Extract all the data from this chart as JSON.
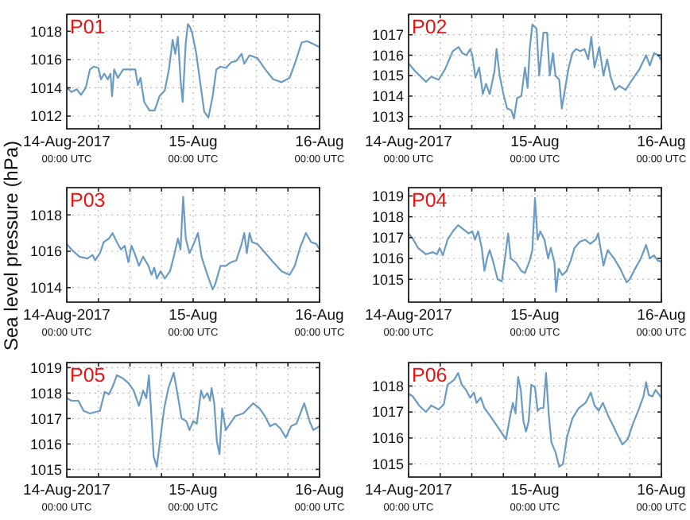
{
  "chart_data": [
    {
      "type": "line",
      "title": "P01",
      "ylabel": "Sea level pressure (hPa)",
      "xlim": [
        "2017-08-14T00:00",
        "2017-08-16T00:00"
      ],
      "ylim": [
        1011.1,
        1019.2
      ],
      "yticks": [
        1012,
        1014,
        1016,
        1018
      ],
      "xticks": [
        {
          "value": "2017-08-14T00:00",
          "label": "14-Aug-2017\n00:00 UTC"
        },
        {
          "value": "2017-08-14T06:00",
          "label": null
        },
        {
          "value": "2017-08-14T12:00",
          "label": null
        },
        {
          "value": "2017-08-14T18:00",
          "label": null
        },
        {
          "value": "2017-08-15T00:00",
          "label": "15-Aug\n00:00 UTC"
        },
        {
          "value": "2017-08-15T06:00",
          "label": null
        },
        {
          "value": "2017-08-15T12:00",
          "label": null
        },
        {
          "value": "2017-08-15T18:00",
          "label": null
        },
        {
          "value": "2017-08-16T00:00",
          "label": "16-Aug\n00:00 UTC"
        }
      ],
      "grid": true,
      "marker": "none",
      "line_style": "solid",
      "x": [
        "2017-08-14T00:00",
        "2017-08-14T00:54",
        "2017-08-14T01:54",
        "2017-08-14T02:42",
        "2017-08-14T03:36",
        "2017-08-14T04:24",
        "2017-08-14T05:06",
        "2017-08-14T06:00",
        "2017-08-14T06:30",
        "2017-08-14T07:06",
        "2017-08-14T07:48",
        "2017-08-14T08:18",
        "2017-08-14T08:36",
        "2017-08-14T09:00",
        "2017-08-14T09:42",
        "2017-08-14T10:42",
        "2017-08-14T13:00",
        "2017-08-14T13:30",
        "2017-08-14T14:00",
        "2017-08-14T14:42",
        "2017-08-14T15:42",
        "2017-08-14T16:42",
        "2017-08-14T17:36",
        "2017-08-14T18:36",
        "2017-08-14T19:24",
        "2017-08-14T20:06",
        "2017-08-14T20:36",
        "2017-08-14T21:06",
        "2017-08-14T21:36",
        "2017-08-14T22:00",
        "2017-08-14T22:36",
        "2017-08-14T23:00",
        "2017-08-14T23:24",
        "2017-08-14T23:48",
        "2017-08-15T00:36",
        "2017-08-15T01:24",
        "2017-08-15T02:06",
        "2017-08-15T02:54",
        "2017-08-15T03:42",
        "2017-08-15T04:24",
        "2017-08-15T05:12",
        "2017-08-15T06:12",
        "2017-08-15T07:12",
        "2017-08-15T08:12",
        "2017-08-15T09:12",
        "2017-08-15T09:42",
        "2017-08-15T10:42",
        "2017-08-15T12:12",
        "2017-08-15T13:42",
        "2017-08-15T15:12",
        "2017-08-15T16:48",
        "2017-08-15T18:18",
        "2017-08-15T19:18",
        "2017-08-15T20:36",
        "2017-08-15T21:36",
        "2017-08-15T22:48",
        "2017-08-15T23:54"
      ],
      "series": [
        {
          "color": "#6a9bc4",
          "values": [
            1014.0,
            1013.7,
            1013.9,
            1013.5,
            1014.0,
            1015.3,
            1015.5,
            1015.4,
            1014.6,
            1015.0,
            1014.6,
            1015.0,
            1013.4,
            1015.3,
            1014.7,
            1015.3,
            1015.3,
            1014.2,
            1014.7,
            1013.0,
            1012.4,
            1012.4,
            1013.4,
            1013.8,
            1015.3,
            1017.4,
            1016.4,
            1017.6,
            1014.6,
            1013.0,
            1017.2,
            1018.5,
            1018.3,
            1017.9,
            1016.4,
            1014.2,
            1012.3,
            1011.9,
            1013.4,
            1015.3,
            1015.5,
            1015.4,
            1015.8,
            1015.9,
            1016.4,
            1015.7,
            1016.3,
            1016.1,
            1015.3,
            1014.6,
            1014.4,
            1014.7,
            1015.7,
            1017.2,
            1017.3,
            1017.1,
            1016.9
          ]
        }
      ]
    },
    {
      "type": "line",
      "title": "P02",
      "xlim": [
        "2017-08-14T00:00",
        "2017-08-16T00:00"
      ],
      "ylim": [
        1012.4,
        1018
      ],
      "yticks": [
        1013,
        1014,
        1015,
        1016,
        1017
      ],
      "xticks": [
        {
          "value": "2017-08-14T00:00",
          "label": "14-Aug-2017\n00:00 UTC"
        },
        {
          "value": "2017-08-14T06:00",
          "label": null
        },
        {
          "value": "2017-08-14T12:00",
          "label": null
        },
        {
          "value": "2017-08-14T18:00",
          "label": null
        },
        {
          "value": "2017-08-15T00:00",
          "label": "15-Aug\n00:00 UTC"
        },
        {
          "value": "2017-08-15T06:00",
          "label": null
        },
        {
          "value": "2017-08-15T12:00",
          "label": null
        },
        {
          "value": "2017-08-15T18:00",
          "label": null
        },
        {
          "value": "2017-08-16T00:00",
          "label": "16-Aug\n00:00 UTC"
        }
      ],
      "grid": true,
      "marker": "none",
      "line_style": "solid",
      "x": [
        "2017-08-14T00:00",
        "2017-08-14T01:18",
        "2017-08-14T03:18",
        "2017-08-14T04:18",
        "2017-08-14T05:42",
        "2017-08-14T06:54",
        "2017-08-14T08:24",
        "2017-08-14T09:30",
        "2017-08-14T10:12",
        "2017-08-14T11:00",
        "2017-08-14T11:42",
        "2017-08-14T12:06",
        "2017-08-14T12:42",
        "2017-08-14T13:24",
        "2017-08-14T14:06",
        "2017-08-14T14:42",
        "2017-08-14T15:24",
        "2017-08-14T16:18",
        "2017-08-14T16:42",
        "2017-08-14T17:18",
        "2017-08-14T18:00",
        "2017-08-14T18:42",
        "2017-08-14T19:30",
        "2017-08-14T20:00",
        "2017-08-14T20:36",
        "2017-08-14T21:24",
        "2017-08-14T22:06",
        "2017-08-14T22:36",
        "2017-08-14T23:00",
        "2017-08-14T23:30",
        "2017-08-15T00:18",
        "2017-08-15T00:48",
        "2017-08-15T01:36",
        "2017-08-15T02:18",
        "2017-08-15T02:48",
        "2017-08-15T03:24",
        "2017-08-15T03:54",
        "2017-08-15T04:36",
        "2017-08-15T05:06",
        "2017-08-15T05:48",
        "2017-08-15T06:24",
        "2017-08-15T07:06",
        "2017-08-15T07:48",
        "2017-08-15T08:36",
        "2017-08-15T09:24",
        "2017-08-15T10:06",
        "2017-08-15T10:42",
        "2017-08-15T11:18",
        "2017-08-15T12:12",
        "2017-08-15T13:00",
        "2017-08-15T13:42",
        "2017-08-15T14:24",
        "2017-08-15T15:12",
        "2017-08-15T16:00",
        "2017-08-15T17:12",
        "2017-08-15T18:12",
        "2017-08-15T19:48",
        "2017-08-15T21:06",
        "2017-08-15T21:48",
        "2017-08-15T22:36",
        "2017-08-15T23:24",
        "2017-08-16T00:00"
      ],
      "series": [
        {
          "color": "#6a9bc4",
          "values": [
            1015.6,
            1015.2,
            1014.7,
            1014.95,
            1014.8,
            1015.3,
            1016.2,
            1016.4,
            1016.1,
            1016.0,
            1016.3,
            1016.0,
            1014.9,
            1015.4,
            1014.1,
            1014.6,
            1014.1,
            1015.2,
            1016.3,
            1015.0,
            1014.1,
            1013.4,
            1013.3,
            1012.9,
            1013.9,
            1014.0,
            1015.4,
            1014.4,
            1016.3,
            1017.5,
            1017.3,
            1015.0,
            1017.1,
            1017.1,
            1015.0,
            1016.1,
            1015.0,
            1014.8,
            1013.4,
            1014.5,
            1015.4,
            1016.1,
            1016.3,
            1016.2,
            1016.3,
            1015.8,
            1016.9,
            1015.4,
            1016.4,
            1015.0,
            1015.8,
            1014.9,
            1014.3,
            1014.5,
            1014.3,
            1014.7,
            1015.3,
            1016.0,
            1015.5,
            1016.1,
            1016.0,
            1015.75
          ]
        }
      ]
    },
    {
      "type": "line",
      "title": "P03",
      "xlim": [
        "2017-08-14T00:00",
        "2017-08-16T00:00"
      ],
      "ylim": [
        1013.2,
        1019.5
      ],
      "yticks": [
        1014,
        1016,
        1018
      ],
      "xticks": [
        {
          "value": "2017-08-14T00:00",
          "label": "14-Aug-2017\n00:00 UTC"
        },
        {
          "value": "2017-08-14T06:00",
          "label": null
        },
        {
          "value": "2017-08-14T12:00",
          "label": null
        },
        {
          "value": "2017-08-14T18:00",
          "label": null
        },
        {
          "value": "2017-08-15T00:00",
          "label": "15-Aug\n00:00 UTC"
        },
        {
          "value": "2017-08-15T06:00",
          "label": null
        },
        {
          "value": "2017-08-15T12:00",
          "label": null
        },
        {
          "value": "2017-08-15T18:00",
          "label": null
        },
        {
          "value": "2017-08-16T00:00",
          "label": "16-Aug\n00:00 UTC"
        }
      ],
      "grid": true,
      "marker": "none",
      "line_style": "solid",
      "x": [
        "2017-08-14T00:00",
        "2017-08-14T00:54",
        "2017-08-14T02:24",
        "2017-08-14T03:54",
        "2017-08-14T04:54",
        "2017-08-14T05:24",
        "2017-08-14T06:18",
        "2017-08-14T07:00",
        "2017-08-14T08:00",
        "2017-08-14T08:42",
        "2017-08-14T09:30",
        "2017-08-14T10:18",
        "2017-08-14T11:00",
        "2017-08-14T11:42",
        "2017-08-14T12:18",
        "2017-08-14T13:00",
        "2017-08-14T13:42",
        "2017-08-14T14:30",
        "2017-08-14T15:30",
        "2017-08-14T16:06",
        "2017-08-14T16:36",
        "2017-08-14T17:06",
        "2017-08-14T17:48",
        "2017-08-14T18:36",
        "2017-08-14T19:36",
        "2017-08-14T20:24",
        "2017-08-14T21:06",
        "2017-08-14T21:36",
        "2017-08-14T22:06",
        "2017-08-14T22:36",
        "2017-08-14T23:18",
        "2017-08-15T00:06",
        "2017-08-15T00:54",
        "2017-08-15T01:36",
        "2017-08-15T02:42",
        "2017-08-15T03:42",
        "2017-08-15T04:12",
        "2017-08-15T05:12",
        "2017-08-15T06:12",
        "2017-08-15T07:12",
        "2017-08-15T08:12",
        "2017-08-15T09:12",
        "2017-08-15T09:42",
        "2017-08-15T10:12",
        "2017-08-15T10:42",
        "2017-08-15T11:12",
        "2017-08-15T12:12",
        "2017-08-15T13:42",
        "2017-08-15T15:12",
        "2017-08-15T16:48",
        "2017-08-15T18:18",
        "2017-08-15T19:18",
        "2017-08-15T20:18",
        "2017-08-15T21:24",
        "2017-08-15T22:24",
        "2017-08-15T23:24",
        "2017-08-16T00:00"
      ],
      "series": [
        {
          "color": "#6a9bc4",
          "values": [
            1016.4,
            1016.1,
            1015.7,
            1015.6,
            1015.8,
            1015.5,
            1015.9,
            1016.5,
            1016.7,
            1017.0,
            1016.5,
            1016.1,
            1016.3,
            1015.4,
            1016.3,
            1015.8,
            1015.2,
            1015.7,
            1015.2,
            1014.7,
            1015.1,
            1014.5,
            1014.9,
            1014.5,
            1014.9,
            1015.8,
            1016.7,
            1016.1,
            1019.0,
            1016.7,
            1015.9,
            1016.4,
            1017.0,
            1015.7,
            1014.7,
            1013.9,
            1014.2,
            1015.2,
            1015.2,
            1015.4,
            1015.5,
            1016.4,
            1017.0,
            1015.9,
            1017.0,
            1016.5,
            1016.4,
            1015.9,
            1015.4,
            1014.9,
            1014.7,
            1015.2,
            1016.2,
            1017.0,
            1016.5,
            1016.4,
            1016.1
          ]
        }
      ]
    },
    {
      "type": "line",
      "title": "P04",
      "xlim": [
        "2017-08-14T00:00",
        "2017-08-16T00:00"
      ],
      "ylim": [
        1013.9,
        1019.4
      ],
      "yticks": [
        1015,
        1016,
        1017,
        1018,
        1019
      ],
      "xticks": [
        {
          "value": "2017-08-14T00:00",
          "label": "14-Aug-2017\n00:00 UTC"
        },
        {
          "value": "2017-08-14T06:00",
          "label": null
        },
        {
          "value": "2017-08-14T12:00",
          "label": null
        },
        {
          "value": "2017-08-14T18:00",
          "label": null
        },
        {
          "value": "2017-08-15T00:00",
          "label": "15-Aug\n00:00 UTC"
        },
        {
          "value": "2017-08-15T06:00",
          "label": null
        },
        {
          "value": "2017-08-15T12:00",
          "label": null
        },
        {
          "value": "2017-08-15T18:00",
          "label": null
        },
        {
          "value": "2017-08-16T00:00",
          "label": "16-Aug\n00:00 UTC"
        }
      ],
      "grid": true,
      "marker": "none",
      "line_style": "solid",
      "x": [
        "2017-08-14T00:00",
        "2017-08-14T00:48",
        "2017-08-14T01:48",
        "2017-08-14T03:18",
        "2017-08-14T04:36",
        "2017-08-14T05:24",
        "2017-08-14T05:54",
        "2017-08-14T06:30",
        "2017-08-14T07:24",
        "2017-08-14T08:24",
        "2017-08-14T09:24",
        "2017-08-14T10:24",
        "2017-08-14T11:24",
        "2017-08-14T12:06",
        "2017-08-14T12:36",
        "2017-08-14T13:12",
        "2017-08-14T13:54",
        "2017-08-14T14:24",
        "2017-08-14T14:54",
        "2017-08-14T15:24",
        "2017-08-14T16:06",
        "2017-08-14T16:54",
        "2017-08-14T17:42",
        "2017-08-14T18:24",
        "2017-08-14T18:54",
        "2017-08-14T19:24",
        "2017-08-14T20:24",
        "2017-08-14T21:24",
        "2017-08-14T22:06",
        "2017-08-14T23:00",
        "2017-08-14T23:30",
        "2017-08-15T00:00",
        "2017-08-15T00:30",
        "2017-08-15T01:00",
        "2017-08-15T01:48",
        "2017-08-15T02:30",
        "2017-08-15T03:00",
        "2017-08-15T03:42",
        "2017-08-15T04:00",
        "2017-08-15T04:30",
        "2017-08-15T05:12",
        "2017-08-15T06:00",
        "2017-08-15T06:48",
        "2017-08-15T07:30",
        "2017-08-15T08:30",
        "2017-08-15T09:30",
        "2017-08-15T10:30",
        "2017-08-15T11:30",
        "2017-08-15T12:00",
        "2017-08-15T13:00",
        "2017-08-15T13:48",
        "2017-08-15T15:00",
        "2017-08-15T16:12",
        "2017-08-15T17:24",
        "2017-08-15T18:00",
        "2017-08-15T19:00",
        "2017-08-15T20:06",
        "2017-08-15T21:06",
        "2017-08-15T21:48",
        "2017-08-15T22:36",
        "2017-08-15T23:18",
        "2017-08-16T00:00"
      ],
      "series": [
        {
          "color": "#6a9bc4",
          "values": [
            1017.2,
            1016.95,
            1016.5,
            1016.2,
            1016.3,
            1016.2,
            1016.5,
            1016.15,
            1016.9,
            1017.3,
            1017.6,
            1017.4,
            1017.2,
            1017.3,
            1016.9,
            1017.3,
            1016.5,
            1015.4,
            1016.0,
            1016.4,
            1015.8,
            1015.0,
            1014.9,
            1016.2,
            1017.2,
            1016.0,
            1015.8,
            1015.4,
            1015.3,
            1015.9,
            1016.4,
            1018.9,
            1016.9,
            1017.3,
            1016.9,
            1016.0,
            1016.5,
            1015.8,
            1014.4,
            1015.5,
            1015.2,
            1015.4,
            1015.9,
            1016.5,
            1016.8,
            1016.9,
            1016.7,
            1016.9,
            1017.2,
            1015.65,
            1016.4,
            1016.0,
            1015.5,
            1014.85,
            1015.0,
            1015.5,
            1016.0,
            1016.65,
            1016.0,
            1016.15,
            1015.9,
            1015.85
          ]
        }
      ]
    },
    {
      "type": "line",
      "title": "P05",
      "xlim": [
        "2017-08-14T00:00",
        "2017-08-16T00:00"
      ],
      "ylim": [
        1014.7,
        1019.2
      ],
      "yticks": [
        1015,
        1016,
        1017,
        1018,
        1019
      ],
      "xticks": [
        {
          "value": "2017-08-14T00:00",
          "label": "14-Aug-2017\n00:00 UTC"
        },
        {
          "value": "2017-08-14T06:00",
          "label": null
        },
        {
          "value": "2017-08-14T12:00",
          "label": null
        },
        {
          "value": "2017-08-14T18:00",
          "label": null
        },
        {
          "value": "2017-08-15T00:00",
          "label": "15-Aug\n00:00 UTC"
        },
        {
          "value": "2017-08-15T06:00",
          "label": null
        },
        {
          "value": "2017-08-15T12:00",
          "label": null
        },
        {
          "value": "2017-08-15T18:00",
          "label": null
        },
        {
          "value": "2017-08-16T00:00",
          "label": "16-Aug\n00:00 UTC"
        }
      ],
      "grid": true,
      "marker": "none",
      "line_style": "solid",
      "x": [
        "2017-08-14T00:00",
        "2017-08-14T00:54",
        "2017-08-14T02:12",
        "2017-08-14T03:12",
        "2017-08-14T04:24",
        "2017-08-14T06:18",
        "2017-08-14T07:12",
        "2017-08-14T08:00",
        "2017-08-14T08:48",
        "2017-08-14T09:30",
        "2017-08-14T10:30",
        "2017-08-14T11:42",
        "2017-08-14T12:42",
        "2017-08-14T13:42",
        "2017-08-14T14:30",
        "2017-08-14T15:06",
        "2017-08-14T15:36",
        "2017-08-14T16:06",
        "2017-08-14T16:30",
        "2017-08-14T17:06",
        "2017-08-14T17:42",
        "2017-08-14T18:30",
        "2017-08-14T19:18",
        "2017-08-14T20:18",
        "2017-08-14T21:00",
        "2017-08-14T21:48",
        "2017-08-14T22:42",
        "2017-08-14T23:18",
        "2017-08-15T00:00",
        "2017-08-15T00:42",
        "2017-08-15T01:30",
        "2017-08-15T02:00",
        "2017-08-15T02:42",
        "2017-08-15T03:12",
        "2017-08-15T03:30",
        "2017-08-15T04:00",
        "2017-08-15T04:30",
        "2017-08-15T05:00",
        "2017-08-15T05:30",
        "2017-08-15T06:12",
        "2017-08-15T07:00",
        "2017-08-15T08:00",
        "2017-08-15T09:30",
        "2017-08-15T11:24",
        "2017-08-15T12:36",
        "2017-08-15T13:36",
        "2017-08-15T14:36",
        "2017-08-15T15:36",
        "2017-08-15T16:36",
        "2017-08-15T17:36",
        "2017-08-15T18:36",
        "2017-08-15T19:36",
        "2017-08-15T21:06",
        "2017-08-15T22:06",
        "2017-08-15T22:48",
        "2017-08-16T00:00"
      ],
      "series": [
        {
          "color": "#6a9bc4",
          "values": [
            1017.8,
            1017.7,
            1017.7,
            1017.3,
            1017.2,
            1017.3,
            1018.05,
            1017.95,
            1018.3,
            1018.7,
            1018.6,
            1018.4,
            1018.1,
            1017.5,
            1018.1,
            1017.8,
            1018.7,
            1017.0,
            1015.5,
            1015.1,
            1016.1,
            1017.4,
            1018.2,
            1018.8,
            1018.0,
            1017.0,
            1016.9,
            1016.55,
            1016.9,
            1016.8,
            1018.1,
            1017.8,
            1018.0,
            1017.7,
            1018.2,
            1017.6,
            1016.1,
            1015.6,
            1017.4,
            1016.55,
            1016.8,
            1017.1,
            1017.2,
            1017.6,
            1017.4,
            1017.1,
            1016.7,
            1016.8,
            1016.6,
            1016.25,
            1016.7,
            1016.8,
            1017.6,
            1016.9,
            1016.55,
            1016.7
          ]
        }
      ]
    },
    {
      "type": "line",
      "title": "P06",
      "xlim": [
        "2017-08-14T00:00",
        "2017-08-16T00:00"
      ],
      "ylim": [
        1014.5,
        1018.9
      ],
      "yticks": [
        1015,
        1016,
        1017,
        1018
      ],
      "xticks": [
        {
          "value": "2017-08-14T00:00",
          "label": "14-Aug-2017\n00:00 UTC"
        },
        {
          "value": "2017-08-14T06:00",
          "label": null
        },
        {
          "value": "2017-08-14T12:00",
          "label": null
        },
        {
          "value": "2017-08-14T18:00",
          "label": null
        },
        {
          "value": "2017-08-15T00:00",
          "label": "15-Aug\n00:00 UTC"
        },
        {
          "value": "2017-08-15T06:00",
          "label": null
        },
        {
          "value": "2017-08-15T12:00",
          "label": null
        },
        {
          "value": "2017-08-15T18:00",
          "label": null
        },
        {
          "value": "2017-08-16T00:00",
          "label": "16-Aug\n00:00 UTC"
        }
      ],
      "grid": true,
      "marker": "none",
      "line_style": "solid",
      "x": [
        "2017-08-14T00:00",
        "2017-08-14T00:48",
        "2017-08-14T02:00",
        "2017-08-14T03:18",
        "2017-08-14T04:18",
        "2017-08-14T05:42",
        "2017-08-14T06:42",
        "2017-08-14T07:24",
        "2017-08-14T08:06",
        "2017-08-14T08:42",
        "2017-08-14T09:24",
        "2017-08-14T10:06",
        "2017-08-14T10:54",
        "2017-08-14T11:42",
        "2017-08-14T12:24",
        "2017-08-14T12:54",
        "2017-08-14T13:42",
        "2017-08-14T14:24",
        "2017-08-14T15:30",
        "2017-08-14T16:30",
        "2017-08-14T17:30",
        "2017-08-14T18:30",
        "2017-08-14T19:12",
        "2017-08-14T19:48",
        "2017-08-14T20:18",
        "2017-08-14T20:48",
        "2017-08-14T21:18",
        "2017-08-14T21:48",
        "2017-08-14T22:18",
        "2017-08-14T22:48",
        "2017-08-14T23:18",
        "2017-08-15T00:00",
        "2017-08-15T00:30",
        "2017-08-15T01:00",
        "2017-08-15T01:36",
        "2017-08-15T02:06",
        "2017-08-15T02:36",
        "2017-08-15T03:06",
        "2017-08-15T03:54",
        "2017-08-15T04:36",
        "2017-08-15T05:18",
        "2017-08-15T06:06",
        "2017-08-15T07:06",
        "2017-08-15T08:18",
        "2017-08-15T09:36",
        "2017-08-15T10:36",
        "2017-08-15T11:18",
        "2017-08-15T12:06",
        "2017-08-15T12:54",
        "2017-08-15T13:54",
        "2017-08-15T14:54",
        "2017-08-15T15:36",
        "2017-08-15T16:36",
        "2017-08-15T17:36",
        "2017-08-15T18:36",
        "2017-08-15T19:36",
        "2017-08-15T20:36",
        "2017-08-15T21:06",
        "2017-08-15T21:36",
        "2017-08-15T22:18",
        "2017-08-15T22:54",
        "2017-08-16T00:00"
      ],
      "series": [
        {
          "color": "#6a9bc4",
          "values": [
            1017.7,
            1017.6,
            1017.25,
            1017.0,
            1017.25,
            1017.1,
            1017.3,
            1018.05,
            1018.15,
            1018.25,
            1018.5,
            1018.05,
            1017.85,
            1017.55,
            1017.75,
            1017.35,
            1017.55,
            1017.15,
            1016.85,
            1016.55,
            1016.25,
            1015.95,
            1016.75,
            1017.35,
            1016.95,
            1018.35,
            1017.85,
            1016.65,
            1016.25,
            1016.65,
            1018.05,
            1017.95,
            1017.05,
            1017.15,
            1017.15,
            1018.5,
            1016.95,
            1015.85,
            1015.45,
            1014.9,
            1015.0,
            1016.05,
            1016.75,
            1017.15,
            1017.35,
            1017.75,
            1017.25,
            1017.05,
            1017.35,
            1016.85,
            1016.45,
            1016.15,
            1015.75,
            1015.95,
            1016.55,
            1017.05,
            1017.6,
            1018.15,
            1017.65,
            1017.6,
            1017.85,
            1017.55
          ]
        }
      ]
    }
  ]
}
